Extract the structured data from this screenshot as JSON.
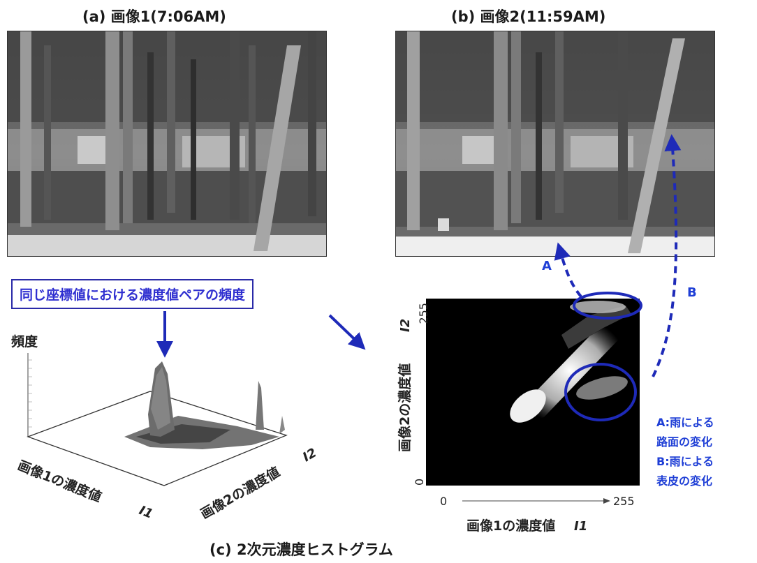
{
  "captions": {
    "a": "(a) 画像1(7:06AM)",
    "b": "(b) 画像2(11:59AM)",
    "c": "(c)  2次元濃度ヒストグラム"
  },
  "callout": "同じ座標値における濃度値ペアの頻度",
  "plot3d": {
    "z_label": "頻度",
    "x_label": "画像1の濃度値",
    "x_symbol": "I1",
    "y_label": "画像2の濃度値",
    "y_symbol": "I2"
  },
  "hist2d": {
    "x_label": "画像1の濃度値",
    "x_symbol": "I1",
    "y_label": "画像2の濃度値",
    "y_symbol": "I2",
    "x_min": "0",
    "x_max": "255",
    "y_min": "0",
    "y_max": "255",
    "marker_a": "A",
    "marker_b": "B"
  },
  "legend": {
    "a_line1": "A:雨による",
    "a_line2": "路面の変化",
    "b_line1": "B:雨による",
    "b_line2": "表皮の変化"
  },
  "colors": {
    "accent": "#2a2ad0",
    "ellipse": "#1e2ab8",
    "photo_bg": "#777777"
  }
}
